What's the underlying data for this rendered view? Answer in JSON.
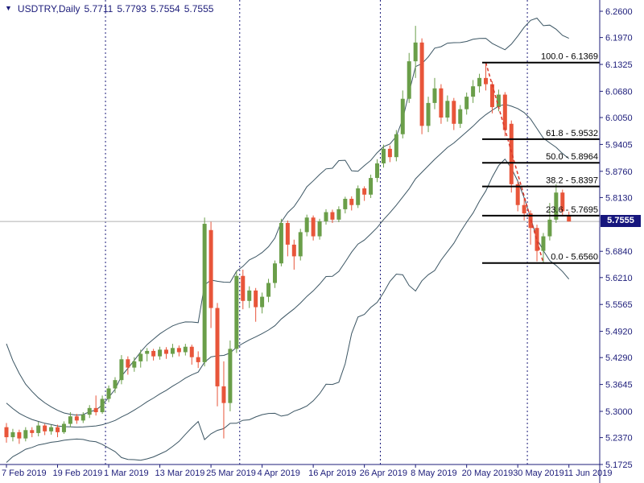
{
  "title": {
    "symbol_period": "USDTRY,Daily",
    "open": "5.7711",
    "high": "5.7793",
    "low": "5.7554",
    "close": "5.7555"
  },
  "price_badge": {
    "value": "5.7555"
  },
  "colors": {
    "background": "#ffffff",
    "bull_candle": "#6a9e49",
    "bear_candle": "#e8553a",
    "bollinger_line": "#3b5563",
    "axis_text": "#1c1c7a",
    "frame": "#1c1c7a",
    "separator": "#1c1c7a",
    "fib_line": "#000000",
    "fib_text": "#000000",
    "fib_trendline": "#d9382b",
    "current_price_line": "#b0b0b0",
    "badge_bg": "#16167d",
    "badge_text": "#ffffff",
    "title_text": "#1c1c7a"
  },
  "chart_data": {
    "type": "candlestick",
    "title": "USDTRY,Daily",
    "symbol": "USDTRY",
    "timeframe": "Daily",
    "current_price": 5.7555,
    "y_axis": {
      "range": [
        5.1725,
        6.26
      ],
      "tick_labels": [
        "6.2600",
        "6.1970",
        "6.1325",
        "6.0680",
        "6.0050",
        "5.9405",
        "5.8760",
        "5.8130",
        "5.6840",
        "5.6210",
        "5.5565",
        "5.4920",
        "5.4290",
        "5.3645",
        "5.3000",
        "5.2370",
        "5.1725"
      ]
    },
    "x_axis": {
      "tick_labels": [
        {
          "text": "7 Feb 2019",
          "index": 0
        },
        {
          "text": "19 Feb 2019",
          "index": 8
        },
        {
          "text": "1 Mar 2019",
          "index": 16
        },
        {
          "text": "13 Mar 2019",
          "index": 24
        },
        {
          "text": "25 Mar 2019",
          "index": 32
        },
        {
          "text": "4 Apr 2019",
          "index": 40
        },
        {
          "text": "16 Apr 2019",
          "index": 48
        },
        {
          "text": "26 Apr 2019",
          "index": 56
        },
        {
          "text": "8 May 2019",
          "index": 64
        },
        {
          "text": "20 May 2019",
          "index": 72
        },
        {
          "text": "30 May 2019",
          "index": 80
        },
        {
          "text": "11 Jun 2019",
          "index": 88
        }
      ]
    },
    "separators": [
      {
        "date": "1 Mar 2019",
        "index": 16
      },
      {
        "date": "1 Apr 2019",
        "index": 37
      },
      {
        "date": "1 May 2019",
        "index": 59
      },
      {
        "date": "3 Jun 2019",
        "index": 82
      }
    ],
    "indicators": {
      "bollinger_bands": {
        "period": 20,
        "deviations": 2
      },
      "fibonacci_retracement": {
        "levels": [
          {
            "pct": "100.0",
            "price": "6.1369"
          },
          {
            "pct": "61.8",
            "price": "5.9532"
          },
          {
            "pct": "50.0",
            "price": "5.8964"
          },
          {
            "pct": "38.2",
            "price": "5.8397"
          },
          {
            "pct": "23.6",
            "price": "5.7695"
          },
          {
            "pct": "0.0",
            "price": "5.6560"
          }
        ],
        "trendline": {
          "from_index": 75,
          "from_price": 6.1369,
          "to_index": 84,
          "to_price": 5.656
        }
      }
    },
    "prehistory_closes": [
      5.56,
      5.51,
      5.46,
      5.42,
      5.38,
      5.36,
      5.34,
      5.325,
      5.315,
      5.305,
      5.3,
      5.29,
      5.285,
      5.28,
      5.275,
      5.27,
      5.265,
      5.26,
      5.255,
      5.26
    ],
    "candles": [
      [
        "7 Feb 2019",
        5.262,
        5.272,
        5.225,
        5.238
      ],
      [
        "8 Feb 2019",
        5.238,
        5.258,
        5.228,
        5.25
      ],
      [
        "11 Feb 2019",
        5.25,
        5.256,
        5.222,
        5.235
      ],
      [
        "12 Feb 2019",
        5.235,
        5.262,
        5.228,
        5.255
      ],
      [
        "13 Feb 2019",
        5.255,
        5.262,
        5.238,
        5.248
      ],
      [
        "14 Feb 2019",
        5.248,
        5.275,
        5.24,
        5.266
      ],
      [
        "15 Feb 2019",
        5.266,
        5.27,
        5.243,
        5.252
      ],
      [
        "18 Feb 2019",
        5.252,
        5.268,
        5.244,
        5.262
      ],
      [
        "19 Feb 2019",
        5.262,
        5.268,
        5.238,
        5.25
      ],
      [
        "20 Feb 2019",
        5.25,
        5.276,
        5.246,
        5.27
      ],
      [
        "21 Feb 2019",
        5.27,
        5.298,
        5.262,
        5.288
      ],
      [
        "22 Feb 2019",
        5.288,
        5.294,
        5.27,
        5.278
      ],
      [
        "25 Feb 2019",
        5.278,
        5.298,
        5.272,
        5.292
      ],
      [
        "26 Feb 2019",
        5.292,
        5.315,
        5.284,
        5.308
      ],
      [
        "27 Feb 2019",
        5.308,
        5.338,
        5.29,
        5.298
      ],
      [
        "28 Feb 2019",
        5.298,
        5.338,
        5.294,
        5.33
      ],
      [
        "1 Mar 2019",
        5.33,
        5.362,
        5.322,
        5.355
      ],
      [
        "4 Mar 2019",
        5.355,
        5.382,
        5.344,
        5.375
      ],
      [
        "5 Mar 2019",
        5.375,
        5.435,
        5.365,
        5.425
      ],
      [
        "6 Mar 2019",
        5.425,
        5.432,
        5.388,
        5.405
      ],
      [
        "7 Mar 2019",
        5.405,
        5.43,
        5.395,
        5.42
      ],
      [
        "8 Mar 2019",
        5.42,
        5.448,
        5.405,
        5.438
      ],
      [
        "11 Mar 2019",
        5.438,
        5.452,
        5.42,
        5.445
      ],
      [
        "12 Mar 2019",
        5.445,
        5.45,
        5.422,
        5.432
      ],
      [
        "13 Mar 2019",
        5.432,
        5.455,
        5.424,
        5.448
      ],
      [
        "14 Mar 2019",
        5.448,
        5.454,
        5.426,
        5.438
      ],
      [
        "15 Mar 2019",
        5.438,
        5.462,
        5.43,
        5.452
      ],
      [
        "18 Mar 2019",
        5.452,
        5.458,
        5.432,
        5.442
      ],
      [
        "19 Mar 2019",
        5.442,
        5.462,
        5.434,
        5.455
      ],
      [
        "20 Mar 2019",
        5.455,
        5.46,
        5.412,
        5.43
      ],
      [
        "21 Mar 2019",
        5.43,
        5.444,
        5.404,
        5.418
      ],
      [
        "22 Mar 2019",
        5.418,
        5.765,
        5.408,
        5.75
      ],
      [
        "25 Mar 2019",
        5.735,
        5.755,
        5.5,
        5.548
      ],
      [
        "26 Mar 2019",
        5.548,
        5.56,
        5.312,
        5.36
      ],
      [
        "27 Mar 2019",
        5.36,
        5.42,
        5.235,
        5.32
      ],
      [
        "28 Mar 2019",
        5.32,
        5.47,
        5.3,
        5.45
      ],
      [
        "29 Mar 2019",
        5.45,
        5.635,
        5.44,
        5.625
      ],
      [
        "1 Apr 2019",
        5.625,
        5.64,
        5.545,
        5.565
      ],
      [
        "2 Apr 2019",
        5.565,
        5.6,
        5.548,
        5.59
      ],
      [
        "3 Apr 2019",
        5.59,
        5.596,
        5.515,
        5.55
      ],
      [
        "4 Apr 2019",
        5.55,
        5.585,
        5.535,
        5.575
      ],
      [
        "5 Apr 2019",
        5.575,
        5.618,
        5.562,
        5.608
      ],
      [
        "8 Apr 2019",
        5.608,
        5.662,
        5.596,
        5.655
      ],
      [
        "9 Apr 2019",
        5.655,
        5.762,
        5.648,
        5.752
      ],
      [
        "10 Apr 2019",
        5.752,
        5.758,
        5.672,
        5.7
      ],
      [
        "11 Apr 2019",
        5.7,
        5.712,
        5.64,
        5.672
      ],
      [
        "12 Apr 2019",
        5.672,
        5.738,
        5.662,
        5.73
      ],
      [
        "15 Apr 2019",
        5.73,
        5.772,
        5.72,
        5.765
      ],
      [
        "16 Apr 2019",
        5.765,
        5.77,
        5.71,
        5.72
      ],
      [
        "17 Apr 2019",
        5.72,
        5.762,
        5.712,
        5.756
      ],
      [
        "18 Apr 2019",
        5.756,
        5.785,
        5.748,
        5.778
      ],
      [
        "19 Apr 2019",
        5.778,
        5.784,
        5.752,
        5.76
      ],
      [
        "22 Apr 2019",
        5.76,
        5.792,
        5.754,
        5.785
      ],
      [
        "23 Apr 2019",
        5.785,
        5.815,
        5.775,
        5.81
      ],
      [
        "24 Apr 2019",
        5.81,
        5.816,
        5.782,
        5.795
      ],
      [
        "25 Apr 2019",
        5.795,
        5.842,
        5.788,
        5.835
      ],
      [
        "26 Apr 2019",
        5.835,
        5.84,
        5.805,
        5.82
      ],
      [
        "29 Apr 2019",
        5.82,
        5.868,
        5.812,
        5.86
      ],
      [
        "30 Apr 2019",
        5.86,
        5.905,
        5.85,
        5.895
      ],
      [
        "1 May 2019",
        5.895,
        5.94,
        5.885,
        5.93
      ],
      [
        "2 May 2019",
        5.93,
        5.938,
        5.898,
        5.91
      ],
      [
        "3 May 2019",
        5.91,
        5.975,
        5.9,
        5.965
      ],
      [
        "6 May 2019",
        5.965,
        6.07,
        5.955,
        6.05
      ],
      [
        "7 May 2019",
        6.05,
        6.16,
        6.04,
        6.14
      ],
      [
        "8 May 2019",
        6.14,
        6.225,
        6.1,
        6.185
      ],
      [
        "9 May 2019",
        6.185,
        6.195,
        5.965,
        5.985
      ],
      [
        "10 May 2019",
        5.985,
        6.055,
        5.97,
        6.04
      ],
      [
        "13 May 2019",
        6.04,
        6.1,
        6.025,
        6.075
      ],
      [
        "14 May 2019",
        6.075,
        6.085,
        5.99,
        6.005
      ],
      [
        "15 May 2019",
        6.005,
        6.058,
        5.995,
        6.045
      ],
      [
        "16 May 2019",
        6.045,
        6.052,
        5.975,
        5.99
      ],
      [
        "17 May 2019",
        5.99,
        6.035,
        5.98,
        6.025
      ],
      [
        "20 May 2019",
        6.025,
        6.065,
        6.012,
        6.055
      ],
      [
        "21 May 2019",
        6.055,
        6.095,
        6.04,
        6.08
      ],
      [
        "22 May 2019",
        6.08,
        6.11,
        6.065,
        6.1
      ],
      [
        "23 May 2019",
        6.1,
        6.137,
        6.07,
        6.085
      ],
      [
        "24 May 2019",
        6.085,
        6.092,
        6.015,
        6.03
      ],
      [
        "27 May 2019",
        6.03,
        6.072,
        6.02,
        6.06
      ],
      [
        "28 May 2019",
        6.06,
        6.066,
        5.96,
        5.975
      ],
      [
        "29 May 2019",
        5.99,
        5.998,
        5.825,
        5.845
      ],
      [
        "30 May 2019",
        5.845,
        5.852,
        5.78,
        5.795
      ],
      [
        "31 May 2019",
        5.795,
        5.812,
        5.758,
        5.775
      ],
      [
        "3 Jun 2019",
        5.775,
        5.782,
        5.7,
        5.74
      ],
      [
        "4 Jun 2019",
        5.74,
        5.748,
        5.66,
        5.685
      ],
      [
        "5 Jun 2019",
        5.685,
        5.728,
        5.656,
        5.72
      ],
      [
        "6 Jun 2019",
        5.72,
        5.8,
        5.71,
        5.76
      ],
      [
        "7 Jun 2019",
        5.76,
        5.845,
        5.752,
        5.825
      ],
      [
        "10 Jun 2019",
        5.825,
        5.832,
        5.768,
        5.78
      ],
      [
        "11 Jun 2019",
        5.7711,
        5.7793,
        5.7554,
        5.7555
      ]
    ]
  }
}
